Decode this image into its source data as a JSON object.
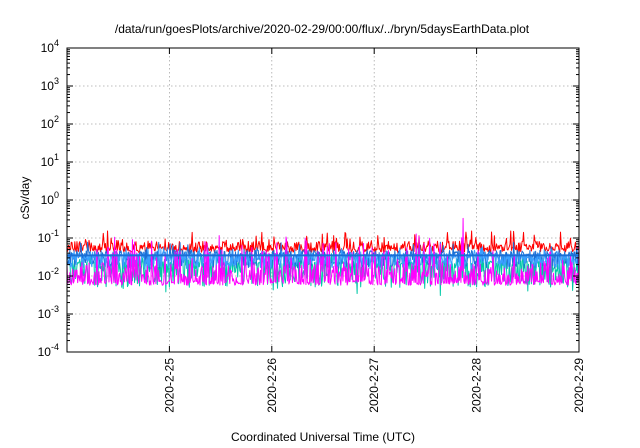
{
  "chart_data": {
    "type": "line",
    "title": "/data/run/goesPlots/archive/2020-02-29/00:00/flux/../bryn/5daysEarthData.plot",
    "xlabel": "Coordinated Universal Time (UTC)",
    "ylabel": "cSv/day",
    "yscale": "log",
    "ylim": [
      0.0001,
      10000
    ],
    "xlim": [
      "2020-02-24T00:00",
      "2020-02-29T00:00"
    ],
    "yticks": [
      {
        "base": "10",
        "exp": "-4",
        "value": 0.0001
      },
      {
        "base": "10",
        "exp": "-3",
        "value": 0.001
      },
      {
        "base": "10",
        "exp": "-2",
        "value": 0.01
      },
      {
        "base": "10",
        "exp": "-1",
        "value": 0.1
      },
      {
        "base": "10",
        "exp": "0",
        "value": 1
      },
      {
        "base": "10",
        "exp": "1",
        "value": 10
      },
      {
        "base": "10",
        "exp": "2",
        "value": 100
      },
      {
        "base": "10",
        "exp": "3",
        "value": 1000
      },
      {
        "base": "10",
        "exp": "4",
        "value": 10000
      }
    ],
    "xticks": [
      {
        "label": "2020-2-25",
        "value": "2020-02-25T00:00"
      },
      {
        "label": "2020-2-26",
        "value": "2020-02-26T00:00"
      },
      {
        "label": "2020-2-27",
        "value": "2020-02-27T00:00"
      },
      {
        "label": "2020-2-28",
        "value": "2020-02-28T00:00"
      },
      {
        "label": "2020-2-29",
        "value": "2020-02-29T00:00"
      }
    ],
    "grid": true,
    "legend": "none",
    "series": [
      {
        "color": "#ff0000",
        "baseline": 0.055,
        "noise_up": 0.45,
        "noise_down": 0.12
      },
      {
        "color": "#00c9a7",
        "baseline": 0.02,
        "noise_up": 0.3,
        "noise_down": 0.6
      },
      {
        "color": "#1a6fd6",
        "baseline": 0.035,
        "noise_up": 0.35,
        "noise_down": 0.35
      },
      {
        "color": "#3aa0ff",
        "baseline": 0.03,
        "noise_up": 0.3,
        "noise_down": 0.3
      },
      {
        "color": "#ff00ff",
        "baseline": 0.0075,
        "noise_up": 1.2,
        "noise_down": 0.12
      }
    ]
  }
}
